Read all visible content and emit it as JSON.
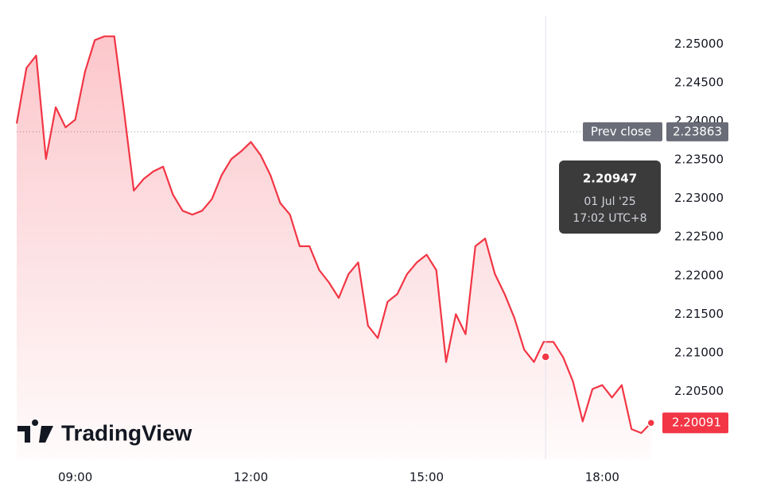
{
  "chart_data": {
    "type": "line",
    "color": "#f23645",
    "x": [
      "08:00",
      "08:10",
      "08:20",
      "08:30",
      "08:40",
      "08:50",
      "09:00",
      "09:10",
      "09:20",
      "09:30",
      "09:40",
      "09:50",
      "10:00",
      "10:10",
      "10:20",
      "10:30",
      "10:40",
      "10:50",
      "11:00",
      "11:10",
      "11:20",
      "11:30",
      "11:40",
      "11:50",
      "12:00",
      "12:10",
      "12:20",
      "12:30",
      "12:40",
      "12:50",
      "13:00",
      "13:10",
      "13:20",
      "13:30",
      "13:40",
      "13:50",
      "14:00",
      "14:10",
      "14:20",
      "14:30",
      "14:40",
      "14:50",
      "15:00",
      "15:10",
      "15:20",
      "15:30",
      "15:40",
      "15:50",
      "16:00",
      "16:10",
      "16:20",
      "16:30",
      "16:40",
      "16:50",
      "17:00",
      "17:10",
      "17:20",
      "17:30",
      "17:40",
      "17:50",
      "18:00",
      "18:10",
      "18:20",
      "18:30",
      "18:40",
      "18:50"
    ],
    "values": [
      2.2397,
      2.2469,
      2.2485,
      2.2351,
      2.2418,
      2.2392,
      2.2402,
      2.2464,
      2.2505,
      2.251,
      2.251,
      2.2413,
      2.231,
      2.2325,
      2.2335,
      2.2341,
      2.2305,
      2.2284,
      2.2279,
      2.2284,
      2.2299,
      2.233,
      2.2351,
      2.2361,
      2.2373,
      2.2356,
      2.233,
      2.2294,
      2.2279,
      2.2238,
      2.2238,
      2.2207,
      2.2191,
      2.2171,
      2.2202,
      2.2217,
      2.2135,
      2.2119,
      2.2166,
      2.2176,
      2.2202,
      2.2217,
      2.2227,
      2.2207,
      2.2088,
      2.215,
      2.2124,
      2.2238,
      2.2248,
      2.2202,
      2.2176,
      2.2145,
      2.2104,
      2.2088,
      2.2114,
      2.2114,
      2.2094,
      2.2063,
      2.2011,
      2.2053,
      2.2058,
      2.2042,
      2.2058,
      2.2001,
      2.1996,
      2.20091
    ],
    "xlim": [
      "08:00",
      "19:00"
    ],
    "xticks": [
      "09:00",
      "12:00",
      "15:00",
      "18:00"
    ],
    "ylim": [
      2.1962,
      2.2557
    ],
    "yticks": [
      {
        "value": 2.205,
        "label": "2.20500"
      },
      {
        "value": 2.21,
        "label": "2.21000"
      },
      {
        "value": 2.215,
        "label": "2.21500"
      },
      {
        "value": 2.22,
        "label": "2.22000"
      },
      {
        "value": 2.225,
        "label": "2.22500"
      },
      {
        "value": 2.23,
        "label": "2.23000"
      },
      {
        "value": 2.235,
        "label": "2.23500"
      },
      {
        "value": 2.24,
        "label": "2.24000"
      },
      {
        "value": 2.245,
        "label": "2.24500"
      },
      {
        "value": 2.25,
        "label": "2.25000"
      }
    ],
    "prev_close": {
      "label": "Prev close",
      "value": 2.23863
    },
    "tooltip": {
      "value": 2.20947,
      "date": "01 Jul '25",
      "time": "17:02 UTC+8"
    },
    "watermark": "TradingView"
  }
}
